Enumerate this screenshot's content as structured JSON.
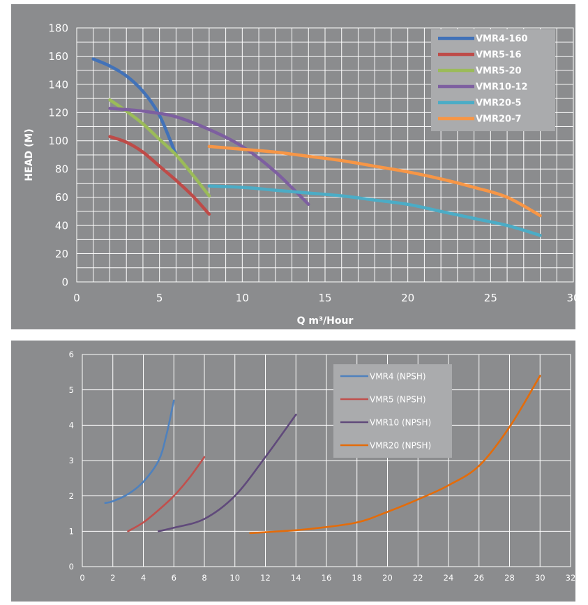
{
  "chart_data": [
    {
      "type": "line",
      "title": "",
      "xlabel": "Q m³/Hour",
      "ylabel": "HEAD (M)",
      "xlim": [
        0,
        30
      ],
      "ylim": [
        0,
        180
      ],
      "x_ticks": [
        "0",
        "5",
        "10",
        "15",
        "20",
        "25",
        "30"
      ],
      "y_ticks": [
        "0",
        "20",
        "40",
        "60",
        "80",
        "100",
        "120",
        "140",
        "160",
        "180"
      ],
      "grid": true,
      "legend_position": "top-right",
      "series": [
        {
          "name": "VMR4-160",
          "color": "#4272b8",
          "points": [
            [
              1,
              158
            ],
            [
              2,
              153
            ],
            [
              3,
              146
            ],
            [
              4,
              135
            ],
            [
              5,
              118
            ],
            [
              6,
              90
            ]
          ]
        },
        {
          "name": "VMR5-16",
          "color": "#be4b48",
          "points": [
            [
              2,
              103
            ],
            [
              3,
              99
            ],
            [
              4,
              92
            ],
            [
              5,
              82
            ],
            [
              6,
              72
            ],
            [
              7,
              61
            ],
            [
              8,
              48
            ]
          ]
        },
        {
          "name": "VMR5-20",
          "color": "#9bbb59",
          "points": [
            [
              2,
              129
            ],
            [
              3,
              121
            ],
            [
              4,
              112
            ],
            [
              5,
              101
            ],
            [
              6,
              90
            ],
            [
              7,
              76
            ],
            [
              8,
              61
            ]
          ]
        },
        {
          "name": "VMR10-12",
          "color": "#7d5fa0",
          "points": [
            [
              2,
              123
            ],
            [
              4,
              121
            ],
            [
              6,
              117
            ],
            [
              8,
              108
            ],
            [
              10,
              96
            ],
            [
              12,
              78
            ],
            [
              14,
              55
            ]
          ]
        },
        {
          "name": "VMR20-5",
          "color": "#4bacc6",
          "points": [
            [
              8,
              68
            ],
            [
              10,
              67
            ],
            [
              12,
              65
            ],
            [
              14,
              63
            ],
            [
              16,
              61
            ],
            [
              18,
              58
            ],
            [
              20,
              55
            ],
            [
              22,
              50
            ],
            [
              24,
              45
            ],
            [
              26,
              40
            ],
            [
              28,
              33
            ]
          ]
        },
        {
          "name": "VMR20-7",
          "color": "#f79646",
          "points": [
            [
              8,
              96
            ],
            [
              10,
              94
            ],
            [
              12,
              92
            ],
            [
              14,
              89
            ],
            [
              16,
              86
            ],
            [
              18,
              82
            ],
            [
              20,
              78
            ],
            [
              22,
              73
            ],
            [
              24,
              67
            ],
            [
              26,
              60
            ],
            [
              28,
              47
            ]
          ]
        }
      ]
    },
    {
      "type": "line",
      "title": "",
      "xlabel": "",
      "ylabel": "",
      "xlim": [
        0,
        32
      ],
      "ylim": [
        0,
        6
      ],
      "x_ticks": [
        "0",
        "2",
        "4",
        "6",
        "8",
        "10",
        "12",
        "14",
        "16",
        "18",
        "20",
        "22",
        "24",
        "26",
        "28",
        "30",
        "32"
      ],
      "y_ticks": [
        "0",
        "1",
        "2",
        "3",
        "4",
        "5",
        "6"
      ],
      "grid": true,
      "legend_position": "top-right",
      "series": [
        {
          "name": "VMR4 (NPSH)",
          "color": "#4f81bd",
          "points": [
            [
              1.5,
              1.8
            ],
            [
              2,
              1.85
            ],
            [
              3,
              2.05
            ],
            [
              4,
              2.4
            ],
            [
              5,
              3.0
            ],
            [
              5.5,
              3.7
            ],
            [
              6,
              4.7
            ]
          ]
        },
        {
          "name": "VMR5 (NPSH)",
          "color": "#c0504d",
          "points": [
            [
              3,
              1.0
            ],
            [
              4,
              1.25
            ],
            [
              5,
              1.6
            ],
            [
              6,
              2.0
            ],
            [
              7,
              2.5
            ],
            [
              8,
              3.1
            ]
          ]
        },
        {
          "name": "VMR10 (NPSH)",
          "color": "#604a7b",
          "points": [
            [
              5,
              1.0
            ],
            [
              6,
              1.1
            ],
            [
              8,
              1.35
            ],
            [
              10,
              2.0
            ],
            [
              12,
              3.1
            ],
            [
              14,
              4.3
            ]
          ]
        },
        {
          "name": "VMR20 (NPSH)",
          "color": "#e46c0a",
          "points": [
            [
              11,
              0.95
            ],
            [
              13,
              1.0
            ],
            [
              15,
              1.07
            ],
            [
              18,
              1.25
            ],
            [
              20,
              1.55
            ],
            [
              22,
              1.9
            ],
            [
              24,
              2.3
            ],
            [
              26,
              2.85
            ],
            [
              28,
              3.95
            ],
            [
              30,
              5.4
            ]
          ]
        }
      ]
    }
  ]
}
